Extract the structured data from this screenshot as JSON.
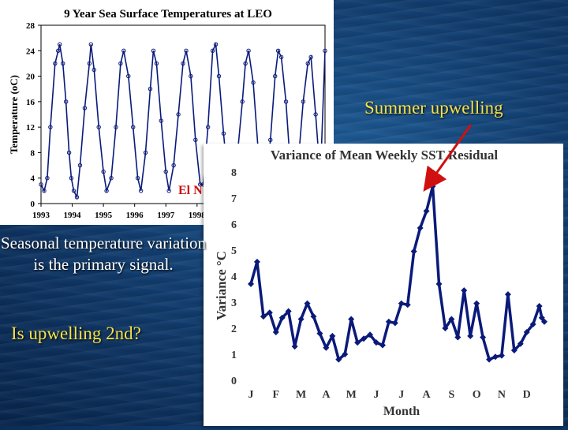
{
  "captions": {
    "seasonal": "Seasonal temperature variation is the primary signal.",
    "question": "Is upwelling 2nd?",
    "summer_upwelling": "Summer upwelling",
    "el_nino_partial": "El N"
  },
  "colors": {
    "series": "#0a1a7a",
    "annotation": "#f6e24a",
    "el_nino": "#cc1111",
    "arrow": "#d01010"
  },
  "chart_data": [
    {
      "type": "line",
      "title": "9 Year Sea Surface Temperatures at LEO",
      "ylabel": "Temperature (oC)",
      "xlabel": "",
      "ylim": [
        0,
        28
      ],
      "xlim": [
        1993,
        2002.1
      ],
      "y_ticks": [
        0,
        4,
        8,
        12,
        16,
        20,
        24,
        28
      ],
      "x_ticks": [
        "1993",
        "1994",
        "1995",
        "1996",
        "1997",
        "1998"
      ],
      "series": [
        {
          "x": [
            1993.0,
            1993.1,
            1993.2,
            1993.3,
            1993.45,
            1993.55,
            1993.6,
            1993.7,
            1993.8,
            1993.9,
            1993.97,
            1994.05,
            1994.15,
            1994.25,
            1994.4,
            1994.55,
            1994.6,
            1994.7,
            1994.85,
            1995.0,
            1995.1,
            1995.25,
            1995.4,
            1995.55,
            1995.65,
            1995.8,
            1995.95,
            1996.1,
            1996.2,
            1996.35,
            1996.5,
            1996.6,
            1996.7,
            1996.85,
            1997.0,
            1997.1,
            1997.25,
            1997.4,
            1997.55,
            1997.65,
            1997.8,
            1997.95,
            1998.1,
            1998.2,
            1998.35,
            1998.5,
            1998.6,
            1998.7,
            1998.85,
            1999.0,
            1999.15,
            1999.3,
            1999.45,
            1999.55,
            1999.65,
            1999.8,
            1999.95,
            2000.1,
            2000.2,
            2000.35,
            2000.5,
            2000.6,
            2000.7,
            2000.85,
            2001.0,
            2001.1,
            2001.25,
            2001.4,
            2001.55,
            2001.65,
            2001.8,
            2001.95,
            2002.1
          ],
          "y": [
            3,
            2,
            4,
            12,
            22,
            24,
            25,
            22,
            16,
            8,
            4,
            2,
            1,
            6,
            15,
            22,
            25,
            21,
            12,
            5,
            2,
            4,
            12,
            22,
            24,
            20,
            12,
            4,
            2,
            8,
            18,
            24,
            22,
            13,
            5,
            2,
            6,
            14,
            22,
            24,
            20,
            10,
            3,
            3,
            12,
            24,
            25,
            20,
            11,
            3,
            1,
            8,
            16,
            22,
            24,
            19,
            9,
            3,
            2,
            10,
            20,
            24,
            23,
            16,
            5,
            2,
            7,
            16,
            22,
            23,
            14,
            4,
            24
          ]
        }
      ]
    },
    {
      "type": "line",
      "title": "Variance of Mean Weekly SST Residual",
      "xlabel": "Month",
      "ylabel": "Variance °C",
      "ylim": [
        0,
        8
      ],
      "y_ticks": [
        0,
        1,
        2,
        3,
        4,
        5,
        6,
        7,
        8
      ],
      "categories": [
        "J",
        "F",
        "M",
        "A",
        "M",
        "J",
        "J",
        "A",
        "S",
        "O",
        "N",
        "D"
      ],
      "series": [
        {
          "x": [
            0,
            0.25,
            0.5,
            0.75,
            1.0,
            1.25,
            1.5,
            1.75,
            2.0,
            2.25,
            2.5,
            2.75,
            3.0,
            3.25,
            3.5,
            3.75,
            4.0,
            4.25,
            4.5,
            4.75,
            5.0,
            5.25,
            5.5,
            5.75,
            6.0,
            6.25,
            6.5,
            6.75,
            7.0,
            7.25,
            7.5,
            7.75,
            8.0,
            8.25,
            8.5,
            8.75,
            9.0,
            9.25,
            9.5,
            9.75,
            10.0,
            10.25,
            10.5,
            10.75,
            11.0,
            11.25,
            11.5,
            11.6,
            11.7
          ],
          "y": [
            3.7,
            4.55,
            2.45,
            2.6,
            1.85,
            2.4,
            2.65,
            1.3,
            2.35,
            2.95,
            2.45,
            1.8,
            1.25,
            1.7,
            0.8,
            1.0,
            2.35,
            1.45,
            1.6,
            1.75,
            1.45,
            1.35,
            2.25,
            2.2,
            2.95,
            2.9,
            4.95,
            5.85,
            6.5,
            7.45,
            3.7,
            2.0,
            2.35,
            1.65,
            3.45,
            1.7,
            2.95,
            1.65,
            0.8,
            0.9,
            0.95,
            3.3,
            1.15,
            1.4,
            1.85,
            2.15,
            2.85,
            2.4,
            2.25
          ]
        }
      ]
    }
  ]
}
